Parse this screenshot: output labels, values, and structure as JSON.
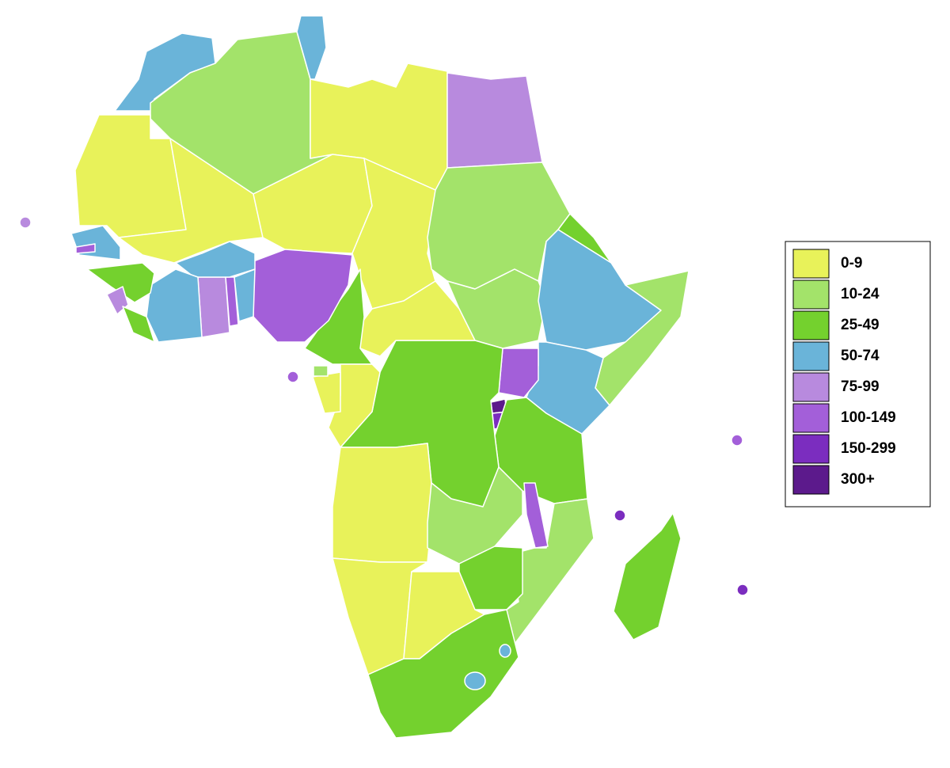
{
  "legend": {
    "items": [
      {
        "label": "0-9",
        "color": "#e8f25a"
      },
      {
        "label": "10-24",
        "color": "#a3e36a"
      },
      {
        "label": "25-49",
        "color": "#74d12e"
      },
      {
        "label": "50-74",
        "color": "#6ab4d9"
      },
      {
        "label": "75-99",
        "color": "#b88ade"
      },
      {
        "label": "100-149",
        "color": "#a35fd9"
      },
      {
        "label": "150-299",
        "color": "#7b2dbf"
      },
      {
        "label": "300+",
        "color": "#5c1a8c"
      }
    ]
  }
}
